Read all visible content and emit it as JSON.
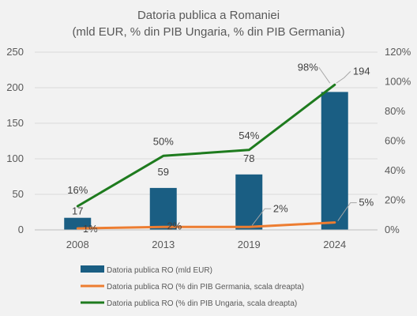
{
  "chart_data": {
    "type": "bar",
    "title": "Datoria publica a Romaniei",
    "subtitle": "(mld EUR, % din PIB Ungaria, % din PIB Germania)",
    "categories": [
      "2008",
      "2013",
      "2019",
      "2024"
    ],
    "ylim": [
      0,
      250
    ],
    "y_ticks": [
      "0",
      "50",
      "100",
      "150",
      "200",
      "250"
    ],
    "y2lim": [
      0,
      1.2
    ],
    "y2_ticks": [
      "0%",
      "20%",
      "40%",
      "60%",
      "80%",
      "100%",
      "120%"
    ],
    "grid": true,
    "legend_position": "bottom",
    "series": [
      {
        "name": "Datoria publica RO (mld EUR)",
        "type": "bar",
        "axis": "left",
        "color": "#1a5e83",
        "values": [
          17,
          59,
          78,
          194
        ],
        "labels": [
          "17",
          "59",
          "78",
          "194"
        ]
      },
      {
        "name": "Datoria publica RO (% din PIB Germania, scala dreapta)",
        "type": "line",
        "axis": "right",
        "color": "#ed7d31",
        "values": [
          0.01,
          0.02,
          0.02,
          0.05
        ],
        "labels": [
          "1%",
          "2%",
          "2%",
          "5%"
        ]
      },
      {
        "name": "Datoria publica RO (% din PIB Ungaria, scala dreapta)",
        "type": "line",
        "axis": "right",
        "color": "#1e7b1e",
        "values": [
          0.16,
          0.5,
          0.54,
          0.98
        ],
        "labels": [
          "16%",
          "50%",
          "54%",
          "98%"
        ]
      }
    ]
  }
}
